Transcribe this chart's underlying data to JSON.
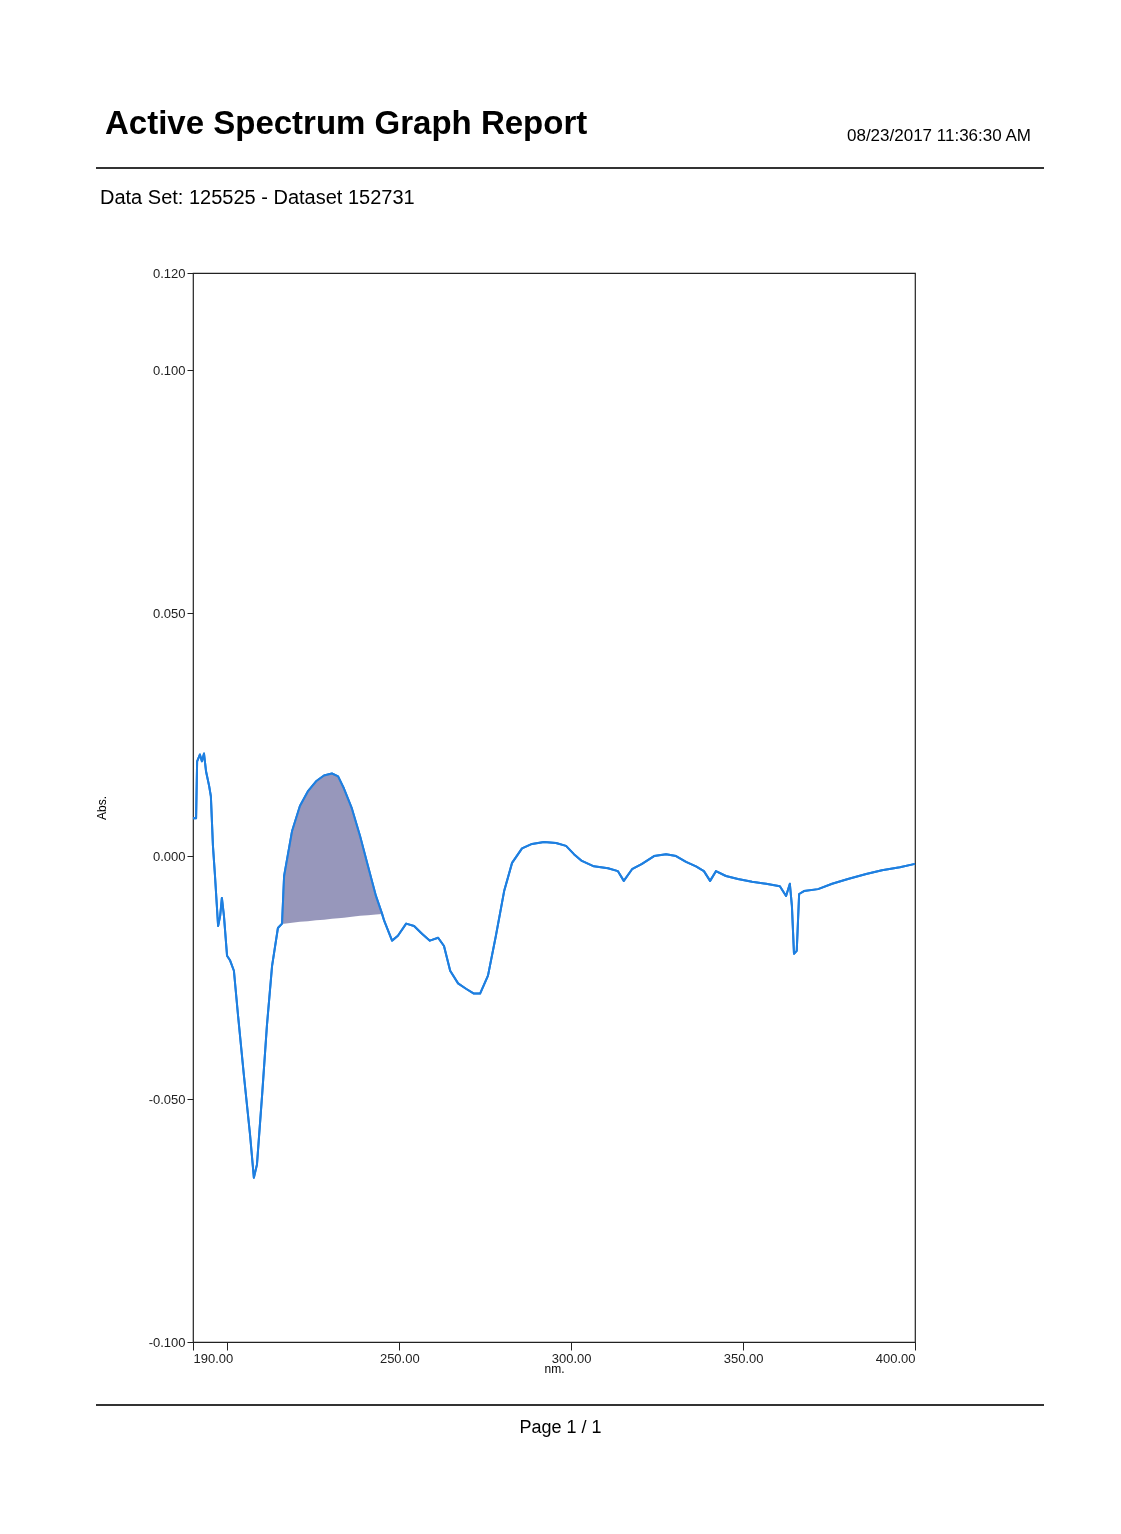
{
  "chart_data": {
    "type": "line",
    "title": "Active Spectrum Graph Report",
    "subtitle": "Data Set: 125525 - Dataset 152731",
    "xlabel": "nm.",
    "ylabel": "Abs.",
    "annotations": [
      "08/23/2017 11:36:30 AM",
      "Page 1 / 1"
    ],
    "xlim": [
      190,
      400
    ],
    "ylim": [
      -0.1,
      0.12
    ],
    "xticks": [
      {
        "value": 190,
        "label": "190.00"
      },
      {
        "value": 200,
        "label": null
      },
      {
        "value": 250,
        "label": "250.00"
      },
      {
        "value": 300,
        "label": "300.00"
      },
      {
        "value": 350,
        "label": "350.00"
      },
      {
        "value": 400,
        "label": "400.00"
      }
    ],
    "yticks": [
      {
        "value": -0.1,
        "label": "-0.100"
      },
      {
        "value": -0.05,
        "label": "-0.050"
      },
      {
        "value": 0,
        "label": "0.000"
      },
      {
        "value": 0.05,
        "label": "0.050"
      },
      {
        "value": 0.1,
        "label": "0.100"
      },
      {
        "value": 0.12,
        "label": "0.120"
      }
    ],
    "grid": false,
    "series": [
      {
        "color": "#1e7fe0",
        "x": [
          190.0,
          190.9,
          191.2,
          192.0,
          192.6,
          193.2,
          193.8,
          194.7,
          195.2,
          195.8,
          196.4,
          197.3,
          197.9,
          198.4,
          199.0,
          199.9,
          200.8,
          201.9,
          203.1,
          204.8,
          206.6,
          207.7,
          208.6,
          210.1,
          211.5,
          213.0,
          214.7,
          215.9,
          216.5,
          218.8,
          221.1,
          223.4,
          225.8,
          228.1,
          230.4,
          232.2,
          233.9,
          236.2,
          238.6,
          240.9,
          243.2,
          245.0,
          245.6,
          247.9,
          249.6,
          252.0,
          254.3,
          256.6,
          258.9,
          261.3,
          263.0,
          264.8,
          267.1,
          269.4,
          271.7,
          273.5,
          275.8,
          278.1,
          280.5,
          282.8,
          285.7,
          288.6,
          292.1,
          295.6,
          298.5,
          300.8,
          303.1,
          306.6,
          310.7,
          313.6,
          315.3,
          317.7,
          320.6,
          324.1,
          327.6,
          330.5,
          333.4,
          336.3,
          338.6,
          340.4,
          342.1,
          345.0,
          348.5,
          352.6,
          356.7,
          360.7,
          362.5,
          363.6,
          364.2,
          364.8,
          365.6,
          366.3,
          367.7,
          371.8,
          375.9,
          380.5,
          385.8,
          390.4,
          395.6,
          400.0
        ],
        "values": [
          0.0078,
          0.0078,
          0.0195,
          0.0209,
          0.0195,
          0.0211,
          0.0174,
          0.0144,
          0.0123,
          0.0021,
          -0.0041,
          -0.0144,
          -0.0123,
          -0.0086,
          -0.0123,
          -0.0205,
          -0.0215,
          -0.0236,
          -0.0328,
          -0.0451,
          -0.0574,
          -0.0662,
          -0.0635,
          -0.0492,
          -0.0349,
          -0.0226,
          -0.0148,
          -0.0139,
          -0.0041,
          0.0051,
          0.0103,
          0.0133,
          0.0154,
          0.0166,
          0.017,
          0.0164,
          0.0139,
          0.0098,
          0.0041,
          -0.0021,
          -0.0082,
          -0.0119,
          -0.0133,
          -0.0174,
          -0.0164,
          -0.0139,
          -0.0144,
          -0.016,
          -0.0174,
          -0.0168,
          -0.0185,
          -0.0236,
          -0.0262,
          -0.0273,
          -0.0283,
          -0.0283,
          -0.0246,
          -0.0164,
          -0.0072,
          -0.0014,
          0.0016,
          0.0025,
          0.0029,
          0.0027,
          0.0021,
          0.0004,
          -0.001,
          -0.0021,
          -0.0025,
          -0.0031,
          -0.0051,
          -0.0027,
          -0.0016,
          0.0,
          0.0004,
          0.0,
          -0.0012,
          -0.0021,
          -0.0031,
          -0.0051,
          -0.0031,
          -0.0041,
          -0.0047,
          -0.0053,
          -0.0057,
          -0.0062,
          -0.0082,
          -0.0057,
          -0.0103,
          -0.0201,
          -0.0195,
          -0.0078,
          -0.0072,
          -0.0068,
          -0.0057,
          -0.0047,
          -0.0037,
          -0.0029,
          -0.0023,
          -0.0016
        ],
        "lower": [
          null,
          null,
          null,
          null,
          null,
          null,
          null,
          null,
          null,
          null,
          null,
          null,
          null,
          null,
          null,
          null,
          null,
          null,
          null,
          null,
          null,
          null,
          null,
          null,
          null,
          null,
          null,
          -0.0139,
          -0.0139,
          -0.0137,
          -0.0135,
          -0.0134,
          -0.0132,
          -0.0131,
          -0.0129,
          -0.0128,
          -0.0127,
          -0.0125,
          -0.0123,
          -0.0122,
          -0.012,
          -0.0119,
          null,
          null,
          null,
          null,
          null,
          null,
          null,
          null,
          null,
          null,
          null,
          null,
          null,
          null,
          null,
          null,
          null,
          null,
          null,
          null,
          null,
          null,
          null,
          null,
          null,
          null,
          null,
          null,
          null,
          null,
          null,
          null,
          null,
          null,
          null,
          null,
          null,
          null,
          null,
          null,
          null,
          null,
          null,
          null,
          null,
          null,
          null,
          null,
          null,
          null,
          null,
          null,
          null,
          null,
          null,
          null,
          null,
          null
        ],
        "upper": [
          null,
          null,
          null,
          null,
          null,
          null,
          null,
          null,
          null,
          null,
          null,
          null,
          null,
          null,
          null,
          null,
          null,
          null,
          null,
          null,
          null,
          null,
          null,
          null,
          null,
          null,
          null,
          -0.0139,
          -0.0041,
          0.0051,
          0.0103,
          0.0133,
          0.0154,
          0.0166,
          0.017,
          0.0164,
          0.0139,
          0.0098,
          0.0041,
          -0.0021,
          -0.0082,
          -0.0119,
          null,
          null,
          null,
          null,
          null,
          null,
          null,
          null,
          null,
          null,
          null,
          null,
          null,
          null,
          null,
          null,
          null,
          null,
          null,
          null,
          null,
          null,
          null,
          null,
          null,
          null,
          null,
          null,
          null,
          null,
          null,
          null,
          null,
          null,
          null,
          null,
          null,
          null,
          null,
          null,
          null,
          null,
          null,
          null,
          null,
          null,
          null,
          null,
          null,
          null,
          null,
          null,
          null,
          null,
          null,
          null,
          null,
          null
        ]
      }
    ]
  }
}
